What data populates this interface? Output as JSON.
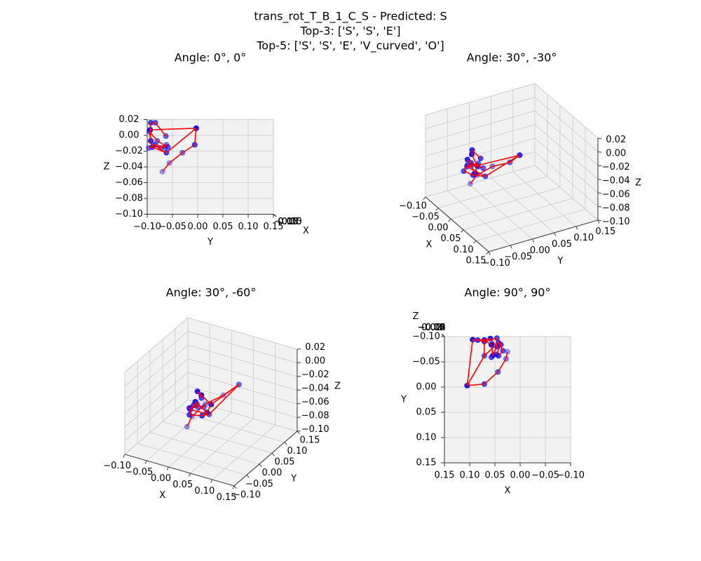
{
  "title": [
    "trans_rot_T_B_1_C_S - Predicted: S",
    "Top-3: ['S', 'S', 'E']",
    "Top-5: ['S', 'S', 'E', 'V_curved', 'O']"
  ],
  "chart_data": [
    {
      "type": "scatter3d",
      "title": "Angle: 0°, 0°",
      "view": {
        "elev": 0,
        "azim": 0
      },
      "xlabel": "X",
      "ylabel": "Y",
      "zlabel": "Z",
      "point_color": "#0000ff",
      "line_color": "#ff0000",
      "x": [
        0.105,
        0.071,
        0.044,
        0.028,
        0.025,
        0.094,
        0.071,
        0.057,
        0.054,
        0.084,
        0.059,
        0.046,
        0.057,
        0.071,
        0.046,
        0.038,
        0.047,
        0.071,
        0.043,
        0.034,
        0.043
      ],
      "y": [
        -0.003,
        -0.006,
        -0.03,
        -0.056,
        -0.07,
        -0.094,
        -0.093,
        -0.084,
        -0.063,
        -0.093,
        -0.096,
        -0.08,
        -0.059,
        -0.09,
        -0.097,
        -0.084,
        -0.065,
        -0.062,
        -0.088,
        -0.072,
        -0.062
      ],
      "z": [
        0.009,
        -0.012,
        -0.022,
        -0.035,
        -0.046,
        0.007,
        0.016,
        0.016,
        -0.001,
        -0.007,
        0.005,
        -0.007,
        -0.015,
        -0.015,
        -0.016,
        -0.012,
        -0.015,
        -0.022,
        -0.012,
        -0.016,
        -0.012
      ],
      "xlim": [
        -0.1,
        0.15
      ],
      "ylim": [
        -0.1,
        0.15
      ],
      "zlim": [
        -0.1,
        0.02
      ],
      "xticks": [
        {
          "value": -0.1,
          "label": "−0.10"
        },
        {
          "value": -0.05,
          "label": "−0.05"
        },
        {
          "value": 0,
          "label": "0.00"
        },
        0.05,
        {
          "value": 0.1,
          "label": "0.10"
        },
        0.15
      ],
      "yticks": [
        {
          "value": -0.1,
          "label": "−0.10"
        },
        {
          "value": -0.05,
          "label": "−0.05"
        },
        {
          "value": 0,
          "label": "0.00"
        },
        0.05,
        {
          "value": 0.1,
          "label": "0.10"
        },
        0.15
      ],
      "zticks": [
        {
          "value": -0.1,
          "label": "−0.10"
        },
        {
          "value": -0.08,
          "label": "−0.08"
        },
        {
          "value": -0.06,
          "label": "−0.06"
        },
        {
          "value": -0.04,
          "label": "−0.04"
        },
        {
          "value": -0.02,
          "label": "−0.02"
        },
        {
          "value": 0,
          "label": "0.00"
        },
        0.02
      ]
    },
    {
      "type": "scatter3d",
      "title": "Angle: 30°, -30°",
      "view": {
        "elev": 30,
        "azim": -30
      },
      "xlabel": "X",
      "ylabel": "Y",
      "zlabel": "Z",
      "point_color": "#0000ff",
      "line_color": "#ff0000",
      "x": [
        0.105,
        0.071,
        0.044,
        0.028,
        0.025,
        0.094,
        0.071,
        0.057,
        0.054,
        0.084,
        0.059,
        0.046,
        0.057,
        0.071,
        0.046,
        0.038,
        0.047,
        0.071,
        0.043,
        0.034,
        0.043
      ],
      "y": [
        -0.003,
        -0.006,
        -0.03,
        -0.056,
        -0.07,
        -0.094,
        -0.093,
        -0.084,
        -0.063,
        -0.093,
        -0.096,
        -0.08,
        -0.059,
        -0.09,
        -0.097,
        -0.084,
        -0.065,
        -0.062,
        -0.088,
        -0.072,
        -0.062
      ],
      "z": [
        0.009,
        -0.012,
        -0.022,
        -0.035,
        -0.046,
        0.007,
        0.016,
        0.016,
        -0.001,
        -0.007,
        0.005,
        -0.007,
        -0.015,
        -0.015,
        -0.016,
        -0.012,
        -0.015,
        -0.022,
        -0.012,
        -0.016,
        -0.012
      ],
      "xlim": [
        -0.1,
        0.15
      ],
      "ylim": [
        -0.1,
        0.15
      ],
      "zlim": [
        -0.1,
        0.02
      ],
      "xticks": [
        {
          "value": -0.1,
          "label": "−0.10"
        },
        {
          "value": -0.05,
          "label": "−0.05"
        },
        {
          "value": 0,
          "label": "0.00"
        },
        0.05,
        {
          "value": 0.1,
          "label": "0.10"
        },
        0.15
      ],
      "yticks": [
        {
          "value": -0.1,
          "label": "−0.10"
        },
        {
          "value": -0.05,
          "label": "−0.05"
        },
        {
          "value": 0,
          "label": "0.00"
        },
        0.05,
        {
          "value": 0.1,
          "label": "0.10"
        },
        0.15
      ],
      "zticks": [
        {
          "value": -0.1,
          "label": "−0.10"
        },
        {
          "value": -0.08,
          "label": "−0.08"
        },
        {
          "value": -0.06,
          "label": "−0.06"
        },
        {
          "value": -0.04,
          "label": "−0.04"
        },
        {
          "value": -0.02,
          "label": "−0.02"
        },
        {
          "value": 0,
          "label": "0.00"
        },
        0.02
      ]
    },
    {
      "type": "scatter3d",
      "title": "Angle: 30°, -60°",
      "view": {
        "elev": 30,
        "azim": -60
      },
      "xlabel": "X",
      "ylabel": "Y",
      "zlabel": "Z",
      "point_color": "#0000ff",
      "line_color": "#ff0000",
      "x": [
        0.105,
        0.071,
        0.044,
        0.028,
        0.025,
        0.094,
        0.071,
        0.057,
        0.054,
        0.084,
        0.059,
        0.046,
        0.057,
        0.071,
        0.046,
        0.038,
        0.047,
        0.071,
        0.043,
        0.034,
        0.043
      ],
      "y": [
        -0.003,
        -0.006,
        -0.03,
        -0.056,
        -0.07,
        -0.094,
        -0.093,
        -0.084,
        -0.063,
        -0.093,
        -0.096,
        -0.08,
        -0.059,
        -0.09,
        -0.097,
        -0.084,
        -0.065,
        -0.062,
        -0.088,
        -0.072,
        -0.062
      ],
      "z": [
        0.009,
        -0.012,
        -0.022,
        -0.035,
        -0.046,
        0.007,
        0.016,
        0.016,
        -0.001,
        -0.007,
        0.005,
        -0.007,
        -0.015,
        -0.015,
        -0.016,
        -0.012,
        -0.015,
        -0.022,
        -0.012,
        -0.016,
        -0.012
      ],
      "xlim": [
        -0.1,
        0.15
      ],
      "ylim": [
        -0.1,
        0.15
      ],
      "zlim": [
        -0.1,
        0.02
      ],
      "xticks": [
        {
          "value": -0.1,
          "label": "−0.10"
        },
        {
          "value": -0.05,
          "label": "−0.05"
        },
        {
          "value": 0,
          "label": "0.00"
        },
        0.05,
        {
          "value": 0.1,
          "label": "0.10"
        },
        0.15
      ],
      "yticks": [
        {
          "value": -0.1,
          "label": "−0.10"
        },
        {
          "value": -0.05,
          "label": "−0.05"
        },
        {
          "value": 0,
          "label": "0.00"
        },
        0.05,
        {
          "value": 0.1,
          "label": "0.10"
        },
        0.15
      ],
      "zticks": [
        {
          "value": -0.1,
          "label": "−0.10"
        },
        {
          "value": -0.08,
          "label": "−0.08"
        },
        {
          "value": -0.06,
          "label": "−0.06"
        },
        {
          "value": -0.04,
          "label": "−0.04"
        },
        {
          "value": -0.02,
          "label": "−0.02"
        },
        {
          "value": 0,
          "label": "0.00"
        },
        0.02
      ]
    },
    {
      "type": "scatter3d",
      "title": "Angle: 90°, 90°",
      "view": {
        "elev": 90,
        "azim": 90
      },
      "xlabel": "X",
      "ylabel": "Y",
      "zlabel": "Z",
      "point_color": "#0000ff",
      "line_color": "#ff0000",
      "x": [
        0.105,
        0.071,
        0.044,
        0.028,
        0.025,
        0.094,
        0.071,
        0.057,
        0.054,
        0.084,
        0.059,
        0.046,
        0.057,
        0.071,
        0.046,
        0.038,
        0.047,
        0.071,
        0.043,
        0.034,
        0.043
      ],
      "y": [
        -0.003,
        -0.006,
        -0.03,
        -0.056,
        -0.07,
        -0.094,
        -0.093,
        -0.084,
        -0.063,
        -0.093,
        -0.096,
        -0.08,
        -0.059,
        -0.09,
        -0.097,
        -0.084,
        -0.065,
        -0.062,
        -0.088,
        -0.072,
        -0.062
      ],
      "z": [
        0.009,
        -0.012,
        -0.022,
        -0.035,
        -0.046,
        0.007,
        0.016,
        0.016,
        -0.001,
        -0.007,
        0.005,
        -0.007,
        -0.015,
        -0.015,
        -0.016,
        -0.012,
        -0.015,
        -0.022,
        -0.012,
        -0.016,
        -0.012
      ],
      "xlim": [
        -0.1,
        0.15
      ],
      "ylim": [
        -0.1,
        0.15
      ],
      "zlim": [
        -0.1,
        0.02
      ],
      "xticks": [
        {
          "value": -0.1,
          "label": "−0.10"
        },
        {
          "value": -0.05,
          "label": "−0.05"
        },
        {
          "value": 0,
          "label": "0.00"
        },
        0.05,
        {
          "value": 0.1,
          "label": "0.10"
        },
        0.15
      ],
      "yticks": [
        {
          "value": -0.1,
          "label": "−0.10"
        },
        {
          "value": -0.05,
          "label": "−0.05"
        },
        {
          "value": 0,
          "label": "0.00"
        },
        0.05,
        {
          "value": 0.1,
          "label": "0.10"
        },
        0.15
      ],
      "zticks": [
        {
          "value": -0.1,
          "label": "−0.10"
        },
        {
          "value": -0.08,
          "label": "−0.08"
        },
        {
          "value": -0.06,
          "label": "−0.06"
        },
        {
          "value": -0.04,
          "label": "−0.04"
        },
        {
          "value": -0.02,
          "label": "−0.02"
        },
        {
          "value": 0,
          "label": "0.00"
        },
        0.02
      ]
    }
  ]
}
